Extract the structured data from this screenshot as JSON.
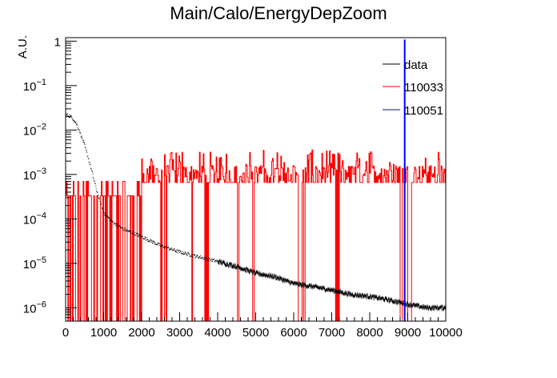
{
  "chart_data": {
    "type": "line",
    "title": "Main/Calo/EnergyDepZoom",
    "xlabel": "",
    "ylabel": "A.U.",
    "xlim": [
      0,
      10000
    ],
    "ylim": [
      5e-07,
      1.2
    ],
    "yscale": "log",
    "grid": false,
    "legend_position": "top-right",
    "x_ticks": [
      "0",
      "1000",
      "2000",
      "3000",
      "4000",
      "5000",
      "6000",
      "7000",
      "8000",
      "9000",
      "10000"
    ],
    "y_ticks": [
      {
        "mantissa": "10",
        "exp": "−6",
        "value": 1e-06
      },
      {
        "mantissa": "10",
        "exp": "−5",
        "value": 1e-05
      },
      {
        "mantissa": "10",
        "exp": "−4",
        "value": 0.0001
      },
      {
        "mantissa": "10",
        "exp": "−3",
        "value": 0.001
      },
      {
        "mantissa": "10",
        "exp": "−2",
        "value": 0.01
      },
      {
        "mantissa": "10",
        "exp": "−1",
        "value": 0.1
      },
      {
        "mantissa": "1",
        "exp": "",
        "value": 1
      }
    ],
    "series": [
      {
        "name": "data",
        "color": "#000000",
        "style": "points",
        "x": [
          0,
          100,
          200,
          300,
          400,
          500,
          600,
          700,
          800,
          900,
          1000,
          1200,
          1500,
          2000,
          2500,
          3000,
          3500,
          4000,
          4500,
          5000,
          5500,
          6000,
          6500,
          7000,
          7500,
          8000,
          8500,
          9000,
          9500,
          10000
        ],
        "y": [
          0.022,
          0.021,
          0.018,
          0.013,
          0.008,
          0.0045,
          0.0023,
          0.0011,
          0.0005,
          0.00025,
          0.00014,
          9e-05,
          6e-05,
          4e-05,
          2.5e-05,
          1.8e-05,
          1.4e-05,
          1.1e-05,
          8.5e-06,
          6e-06,
          5e-06,
          3.5e-06,
          3e-06,
          2.5e-06,
          2e-06,
          1.8e-06,
          1.5e-06,
          1.2e-06,
          1e-06,
          1e-06
        ]
      },
      {
        "name": "110033",
        "color": "#ff0000",
        "style": "histogram",
        "zero_gap_ranges": [
          [
            0,
            900
          ],
          [
            1100,
            2000
          ],
          [
            2500,
            2650
          ],
          [
            3300,
            3350
          ],
          [
            3650,
            3750
          ],
          [
            4500,
            4600
          ],
          [
            4900,
            4950
          ],
          [
            6100,
            6300
          ],
          [
            7100,
            7200
          ],
          [
            8800,
            8850
          ],
          [
            8950,
            9100
          ]
        ],
        "plateau_level": 0.001,
        "low_level": 0.00033,
        "high_level": 0.0017,
        "early_level": 0.00033
      },
      {
        "name": "110051",
        "color": "#0000ff",
        "style": "histogram",
        "spike_x": 8920,
        "spike_y": 1
      }
    ]
  }
}
